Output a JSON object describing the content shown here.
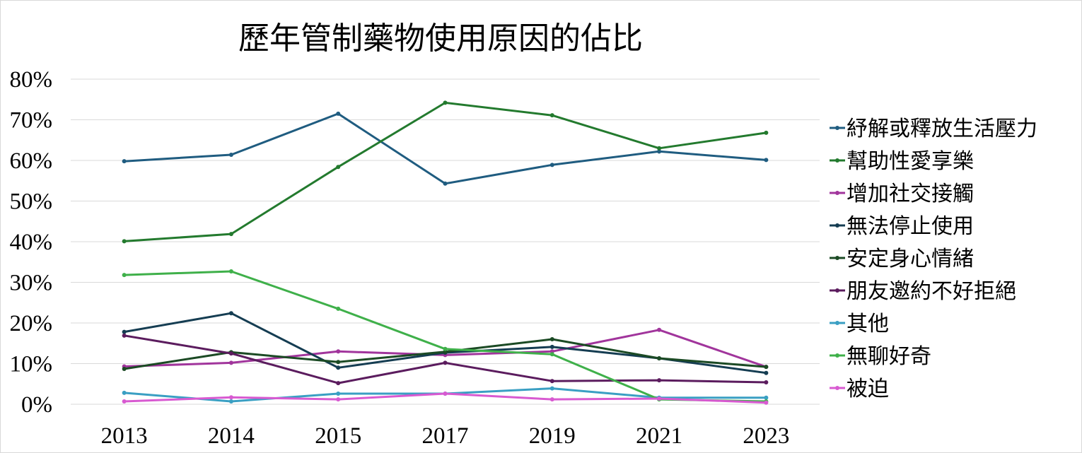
{
  "chart_data": {
    "type": "line",
    "title": "歷年管制藥物使用原因的佔比",
    "xlabel": "",
    "ylabel": "",
    "categories": [
      "2013",
      "2014",
      "2015",
      "2017",
      "2019",
      "2021",
      "2023"
    ],
    "ylim": [
      0,
      80
    ],
    "yticks": [
      0,
      10,
      20,
      30,
      40,
      50,
      60,
      70,
      80
    ],
    "ytick_labels": [
      "0%",
      "10%",
      "20%",
      "30%",
      "40%",
      "50%",
      "60%",
      "70%",
      "80%"
    ],
    "grid": true,
    "legend_position": "right",
    "series": [
      {
        "name": "紓解或釋放生活壓力",
        "color": "#1f5c80",
        "values": [
          59.8,
          61.4,
          71.5,
          54.3,
          58.9,
          62.2,
          60.1
        ]
      },
      {
        "name": "幫助性愛享樂",
        "color": "#237a2e",
        "values": [
          40.1,
          41.9,
          58.4,
          74.2,
          71.1,
          63.0,
          66.8
        ]
      },
      {
        "name": "增加社交接觸",
        "color": "#a1359c",
        "values": [
          9.3,
          10.2,
          13.0,
          12.1,
          13.0,
          18.3,
          9.2
        ]
      },
      {
        "name": "無法停止使用",
        "color": "#153d52",
        "values": [
          17.8,
          22.4,
          9.0,
          12.7,
          14.1,
          11.3,
          7.7
        ]
      },
      {
        "name": "安定身心情緒",
        "color": "#1b4a24",
        "values": [
          8.7,
          12.8,
          10.4,
          12.9,
          16.0,
          11.3,
          9.2
        ]
      },
      {
        "name": "朋友邀約不好拒絕",
        "color": "#5b1c5e",
        "values": [
          16.9,
          12.5,
          5.2,
          10.2,
          5.7,
          5.9,
          5.4
        ]
      },
      {
        "name": "其他",
        "color": "#3a9fc3",
        "values": [
          2.8,
          0.7,
          2.6,
          2.6,
          3.9,
          1.6,
          1.6
        ]
      },
      {
        "name": "無聊好奇",
        "color": "#3fb04a",
        "values": [
          31.8,
          32.7,
          23.5,
          13.6,
          12.3,
          1.2,
          0.7
        ]
      },
      {
        "name": "被迫",
        "color": "#d85ad1",
        "values": [
          0.7,
          1.7,
          1.2,
          2.6,
          1.2,
          1.4,
          0.4
        ]
      }
    ]
  }
}
